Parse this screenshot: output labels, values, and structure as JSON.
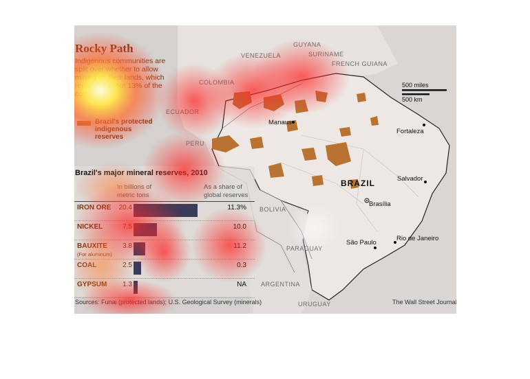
{
  "map": {
    "title": "Rocky Path",
    "subtitle": "Indigenous communities are split over whether to allow mining on their lands, which represent about 13% of the country.",
    "legend_label": "Brazil's protected indigenous reserves",
    "countries": {
      "guyana": "GUYANA",
      "suriname": "SURINAME",
      "french_guiana": "FRENCH GUIANA",
      "venezuela": "VENEZUELA",
      "colombia": "COLOMBIA",
      "ecuador": "ECUADOR",
      "peru": "PERU",
      "bolivia": "BOLIVIA",
      "paraguay": "PARAGUAY",
      "argentina": "ARGENTINA",
      "uruguay": "URUGUAY",
      "brazil": "BRAZIL"
    },
    "cities": {
      "manaus": "Manaus",
      "fortaleza": "Fortaleza",
      "salvador": "Salvador",
      "brasilia": "Brasília",
      "sao_paulo": "São Paulo",
      "rio": "Rio de Janeiro"
    },
    "scale": {
      "miles": "500 miles",
      "km": "500 km"
    },
    "sources": "Sources: Funai (protected lands); U.S. Geological Survey (minerals)",
    "credit": "The Wall Street Journal",
    "colors": {
      "reserves": "#b87333",
      "bars": "#3a3a5a",
      "title": "#7a3511"
    }
  },
  "chart_data": {
    "type": "bar",
    "title": "Brazil's major mineral reserves, 2010",
    "value_header": "In billions of metric tons",
    "share_header": "As a share of global reserves",
    "rows": [
      {
        "mineral": "IRON ORE",
        "note": "",
        "display": "20.4",
        "value": 20.4,
        "share": "11.3%"
      },
      {
        "mineral": "NICKEL",
        "note": "",
        "display": "7.5",
        "value": 7.5,
        "share": "10.0"
      },
      {
        "mineral": "BAUXITE",
        "note": "(For aluminum)",
        "display": "3.8",
        "value": 3.8,
        "share": "11.2"
      },
      {
        "mineral": "COAL",
        "note": "",
        "display": "2.5",
        "value": 2.5,
        "share": "0.3"
      },
      {
        "mineral": "GYPSUM",
        "note": "",
        "display": "1.3",
        "value": 1.3,
        "share": "NA"
      }
    ]
  }
}
